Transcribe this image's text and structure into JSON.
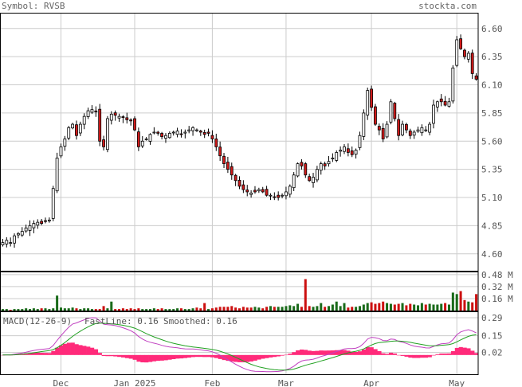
{
  "header": {
    "symbol_text": "Symbol: RVSB",
    "site": "stockta.com"
  },
  "colors": {
    "up_fill": "#ffffff",
    "down_fill": "#d11a1a",
    "candle_edge": "#000000",
    "vol_up": "#1a6b1a",
    "vol_down": "#cc1111",
    "fast": "#c040c0",
    "smooth": "#20a020",
    "hist": "#ff2a7a",
    "grid": "#cccccc",
    "frame": "#000000",
    "text": "#555555"
  },
  "chart_data": [
    {
      "type": "candlestick",
      "name": "price",
      "x_labels": [
        {
          "label": "Dec",
          "index": 15
        },
        {
          "label": "Jan 2025",
          "index": 34
        },
        {
          "label": "Feb",
          "index": 54
        },
        {
          "label": "Mar",
          "index": 73
        },
        {
          "label": "Apr",
          "index": 95
        },
        {
          "label": "May",
          "index": 117
        }
      ],
      "ylim": [
        4.45,
        6.74
      ],
      "y_ticks": [
        "6.60",
        "6.35",
        "6.10",
        "5.85",
        "5.60",
        "5.35",
        "5.10",
        "4.85",
        "4.60"
      ],
      "closes": [
        4.7,
        4.72,
        4.7,
        4.76,
        4.78,
        4.8,
        4.83,
        4.85,
        4.87,
        4.88,
        4.87,
        4.89,
        4.9,
        5.18,
        5.45,
        5.55,
        5.62,
        5.72,
        5.75,
        5.65,
        5.75,
        5.82,
        5.87,
        5.88,
        5.86,
        5.6,
        5.55,
        5.8,
        5.84,
        5.83,
        5.82,
        5.81,
        5.79,
        5.78,
        5.7,
        5.55,
        5.6,
        5.62,
        5.66,
        5.68,
        5.67,
        5.64,
        5.65,
        5.67,
        5.68,
        5.69,
        5.66,
        5.68,
        5.7,
        5.72,
        5.7,
        5.68,
        5.66,
        5.67,
        5.62,
        5.55,
        5.47,
        5.4,
        5.35,
        5.3,
        5.25,
        5.2,
        5.17,
        5.15,
        5.14,
        5.15,
        5.17,
        5.15,
        5.12,
        5.12,
        5.1,
        5.1,
        5.12,
        5.15,
        5.2,
        5.3,
        5.4,
        5.38,
        5.3,
        5.25,
        5.28,
        5.35,
        5.4,
        5.38,
        5.42,
        5.45,
        5.5,
        5.52,
        5.55,
        5.5,
        5.48,
        5.52,
        5.65,
        5.85,
        6.05,
        5.9,
        5.75,
        5.7,
        5.62,
        5.75,
        5.95,
        5.8,
        5.65,
        5.75,
        5.7,
        5.65,
        5.68,
        5.7,
        5.72,
        5.7,
        5.75,
        5.92,
        5.95,
        5.95,
        5.92,
        5.95,
        6.25,
        6.5,
        6.42,
        6.35,
        6.38,
        6.2,
        6.15
      ],
      "volume_unit": "M",
      "volume_ticks": [
        "0.48 M",
        "0.32 M",
        "0.16 M"
      ],
      "volume_max": 0.5,
      "volumes": [
        0.02,
        0.02,
        0.01,
        0.02,
        0.02,
        0.02,
        0.03,
        0.02,
        0.03,
        0.02,
        0.03,
        0.03,
        0.02,
        0.03,
        0.2,
        0.04,
        0.03,
        0.03,
        0.04,
        0.03,
        0.02,
        0.03,
        0.03,
        0.02,
        0.02,
        0.02,
        0.06,
        0.03,
        0.12,
        0.02,
        0.02,
        0.03,
        0.02,
        0.03,
        0.02,
        0.03,
        0.02,
        0.02,
        0.02,
        0.03,
        0.02,
        0.03,
        0.02,
        0.02,
        0.02,
        0.03,
        0.03,
        0.02,
        0.02,
        0.03,
        0.04,
        0.03,
        0.1,
        0.02,
        0.03,
        0.04,
        0.05,
        0.05,
        0.05,
        0.06,
        0.04,
        0.03,
        0.05,
        0.04,
        0.04,
        0.05,
        0.04,
        0.03,
        0.05,
        0.06,
        0.05,
        0.05,
        0.05,
        0.06,
        0.07,
        0.06,
        0.09,
        0.05,
        0.42,
        0.06,
        0.05,
        0.06,
        0.1,
        0.05,
        0.06,
        0.08,
        0.12,
        0.06,
        0.1,
        0.04,
        0.05,
        0.05,
        0.06,
        0.08,
        0.1,
        0.11,
        0.09,
        0.1,
        0.12,
        0.1,
        0.09,
        0.08,
        0.09,
        0.1,
        0.07,
        0.09,
        0.08,
        0.07,
        0.1,
        0.08,
        0.09,
        0.08,
        0.08,
        0.09,
        0.1,
        0.08,
        0.24,
        0.22,
        0.26,
        0.14,
        0.12,
        0.11,
        0.22,
        0.18
      ]
    },
    {
      "type": "line",
      "name": "macd",
      "title": "MACD(12-26-9)",
      "fast_label": "FastLine: 0.16",
      "smooth_label": "Smoothed: 0.16",
      "y_ticks": [
        "0.29",
        "0.15",
        "0.02"
      ],
      "ylim": [
        -0.15,
        0.34
      ]
    }
  ]
}
